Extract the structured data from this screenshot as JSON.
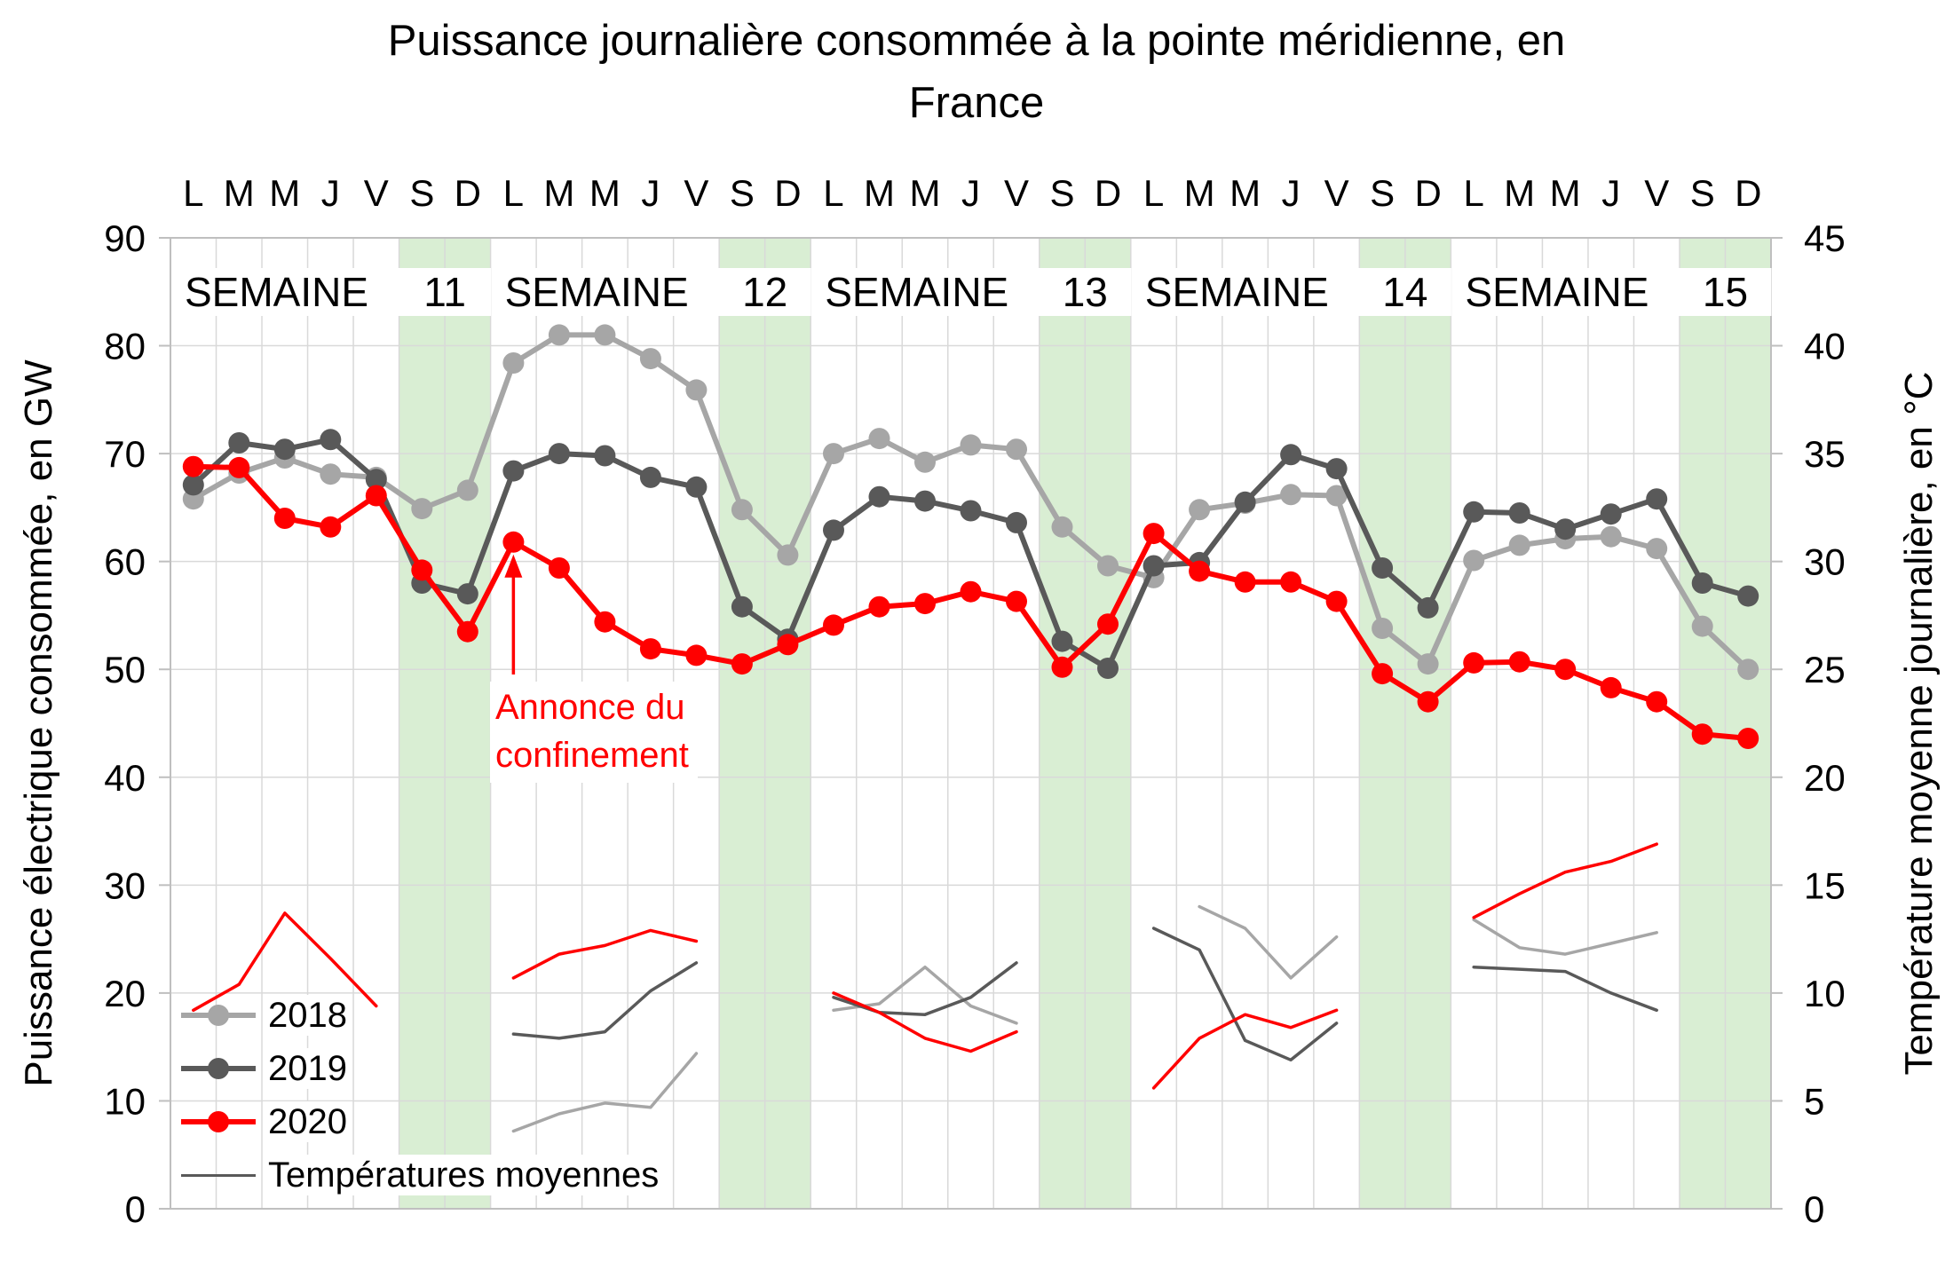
{
  "chart_data": {
    "type": "line",
    "title": "Puissance journalière consommée à la pointe méridienne, en France",
    "title_lines": [
      "Puissance journalière consommée à la pointe méridienne, en",
      "France"
    ],
    "ylabel_left": "Puissance électrique consommée, en GW",
    "ylabel_right": "Température moyenne journalière, en °C",
    "ylim_left": [
      0,
      90
    ],
    "ylim_right": [
      0,
      45
    ],
    "yticks_left": [
      0,
      10,
      20,
      30,
      40,
      50,
      60,
      70,
      80,
      90
    ],
    "yticks_right": [
      0,
      5,
      10,
      15,
      20,
      25,
      30,
      35,
      40,
      45
    ],
    "day_letters": [
      "L",
      "M",
      "M",
      "J",
      "V",
      "S",
      "D"
    ],
    "week_word": "SEMAINE",
    "week_numbers": [
      "11",
      "12",
      "13",
      "14",
      "15"
    ],
    "weekend_band_color": "#d9eed3",
    "grid_color": "#d9d9d9",
    "border_color": "#bfbfbf",
    "background_color": "#ffffff",
    "power_series": [
      {
        "name": "2018",
        "color": "#a6a6a6",
        "values": [
          65.8,
          68.2,
          69.6,
          68.1,
          67.8,
          64.9,
          66.6,
          78.4,
          81.0,
          81.0,
          78.8,
          75.9,
          64.8,
          60.6,
          70.0,
          71.4,
          69.2,
          70.8,
          70.4,
          63.2,
          59.6,
          58.5,
          64.8,
          65.4,
          66.2,
          66.1,
          53.8,
          50.5,
          60.1,
          61.5,
          62.1,
          62.3,
          61.2,
          54.0,
          50.0
        ]
      },
      {
        "name": "2019",
        "color": "#595959",
        "values": [
          67.1,
          71.0,
          70.4,
          71.3,
          67.6,
          58.0,
          57.0,
          68.4,
          70.0,
          69.8,
          67.8,
          66.9,
          55.8,
          52.8,
          62.9,
          66.0,
          65.6,
          64.7,
          63.6,
          52.6,
          50.1,
          59.6,
          59.9,
          65.5,
          69.9,
          68.6,
          59.4,
          55.7,
          64.6,
          64.5,
          63.0,
          64.4,
          65.8,
          58.0,
          56.8
        ]
      },
      {
        "name": "2020",
        "color": "#ff0000",
        "values": [
          68.8,
          68.7,
          64.0,
          63.2,
          66.1,
          59.2,
          53.5,
          61.8,
          59.4,
          54.4,
          51.9,
          51.3,
          50.5,
          52.3,
          54.1,
          55.8,
          56.1,
          57.2,
          56.3,
          50.2,
          54.2,
          62.6,
          59.1,
          58.1,
          58.1,
          56.3,
          49.6,
          47.0,
          50.6,
          50.7,
          50.0,
          48.3,
          47.0,
          44.0,
          43.6
        ]
      }
    ],
    "temperature_series": [
      {
        "name": "2018",
        "color": "#a6a6a6",
        "weeks": [
          null,
          [
            3.6,
            4.4,
            4.9,
            4.7,
            7.2
          ],
          [
            9.2,
            9.5,
            11.2,
            9.4,
            8.6
          ],
          [
            null,
            14.0,
            13.0,
            10.7,
            12.6
          ],
          [
            13.4,
            12.1,
            11.8,
            12.3,
            12.8
          ]
        ]
      },
      {
        "name": "2019",
        "color": "#595959",
        "weeks": [
          null,
          [
            8.1,
            7.9,
            8.2,
            10.1,
            11.4
          ],
          [
            9.8,
            9.1,
            9.0,
            9.8,
            11.4
          ],
          [
            13.0,
            12.0,
            7.8,
            6.9,
            8.6
          ],
          [
            11.2,
            11.1,
            11.0,
            10.0,
            9.2
          ]
        ]
      },
      {
        "name": "2020",
        "color": "#ff0000",
        "weeks": [
          [
            9.2,
            10.4,
            13.7,
            11.6,
            9.4
          ],
          [
            10.7,
            11.8,
            12.2,
            12.9,
            12.4
          ],
          [
            10.0,
            9.1,
            7.9,
            7.3,
            8.2
          ],
          [
            5.6,
            7.9,
            9.0,
            8.4,
            9.2
          ],
          [
            13.5,
            14.6,
            15.6,
            16.1,
            16.9
          ]
        ]
      }
    ],
    "legend_items": [
      {
        "label": "2018",
        "color": "#a6a6a6",
        "marker": true
      },
      {
        "label": "2019",
        "color": "#595959",
        "marker": true
      },
      {
        "label": "2020",
        "color": "#ff0000",
        "marker": true
      },
      {
        "label": "Températures moyennes",
        "color": "#595959",
        "marker": false
      }
    ],
    "annotation": {
      "lines": [
        "Annonce du",
        "confinement"
      ],
      "color": "#ff0000",
      "target_series": "2020",
      "target_day_index": 7
    }
  }
}
